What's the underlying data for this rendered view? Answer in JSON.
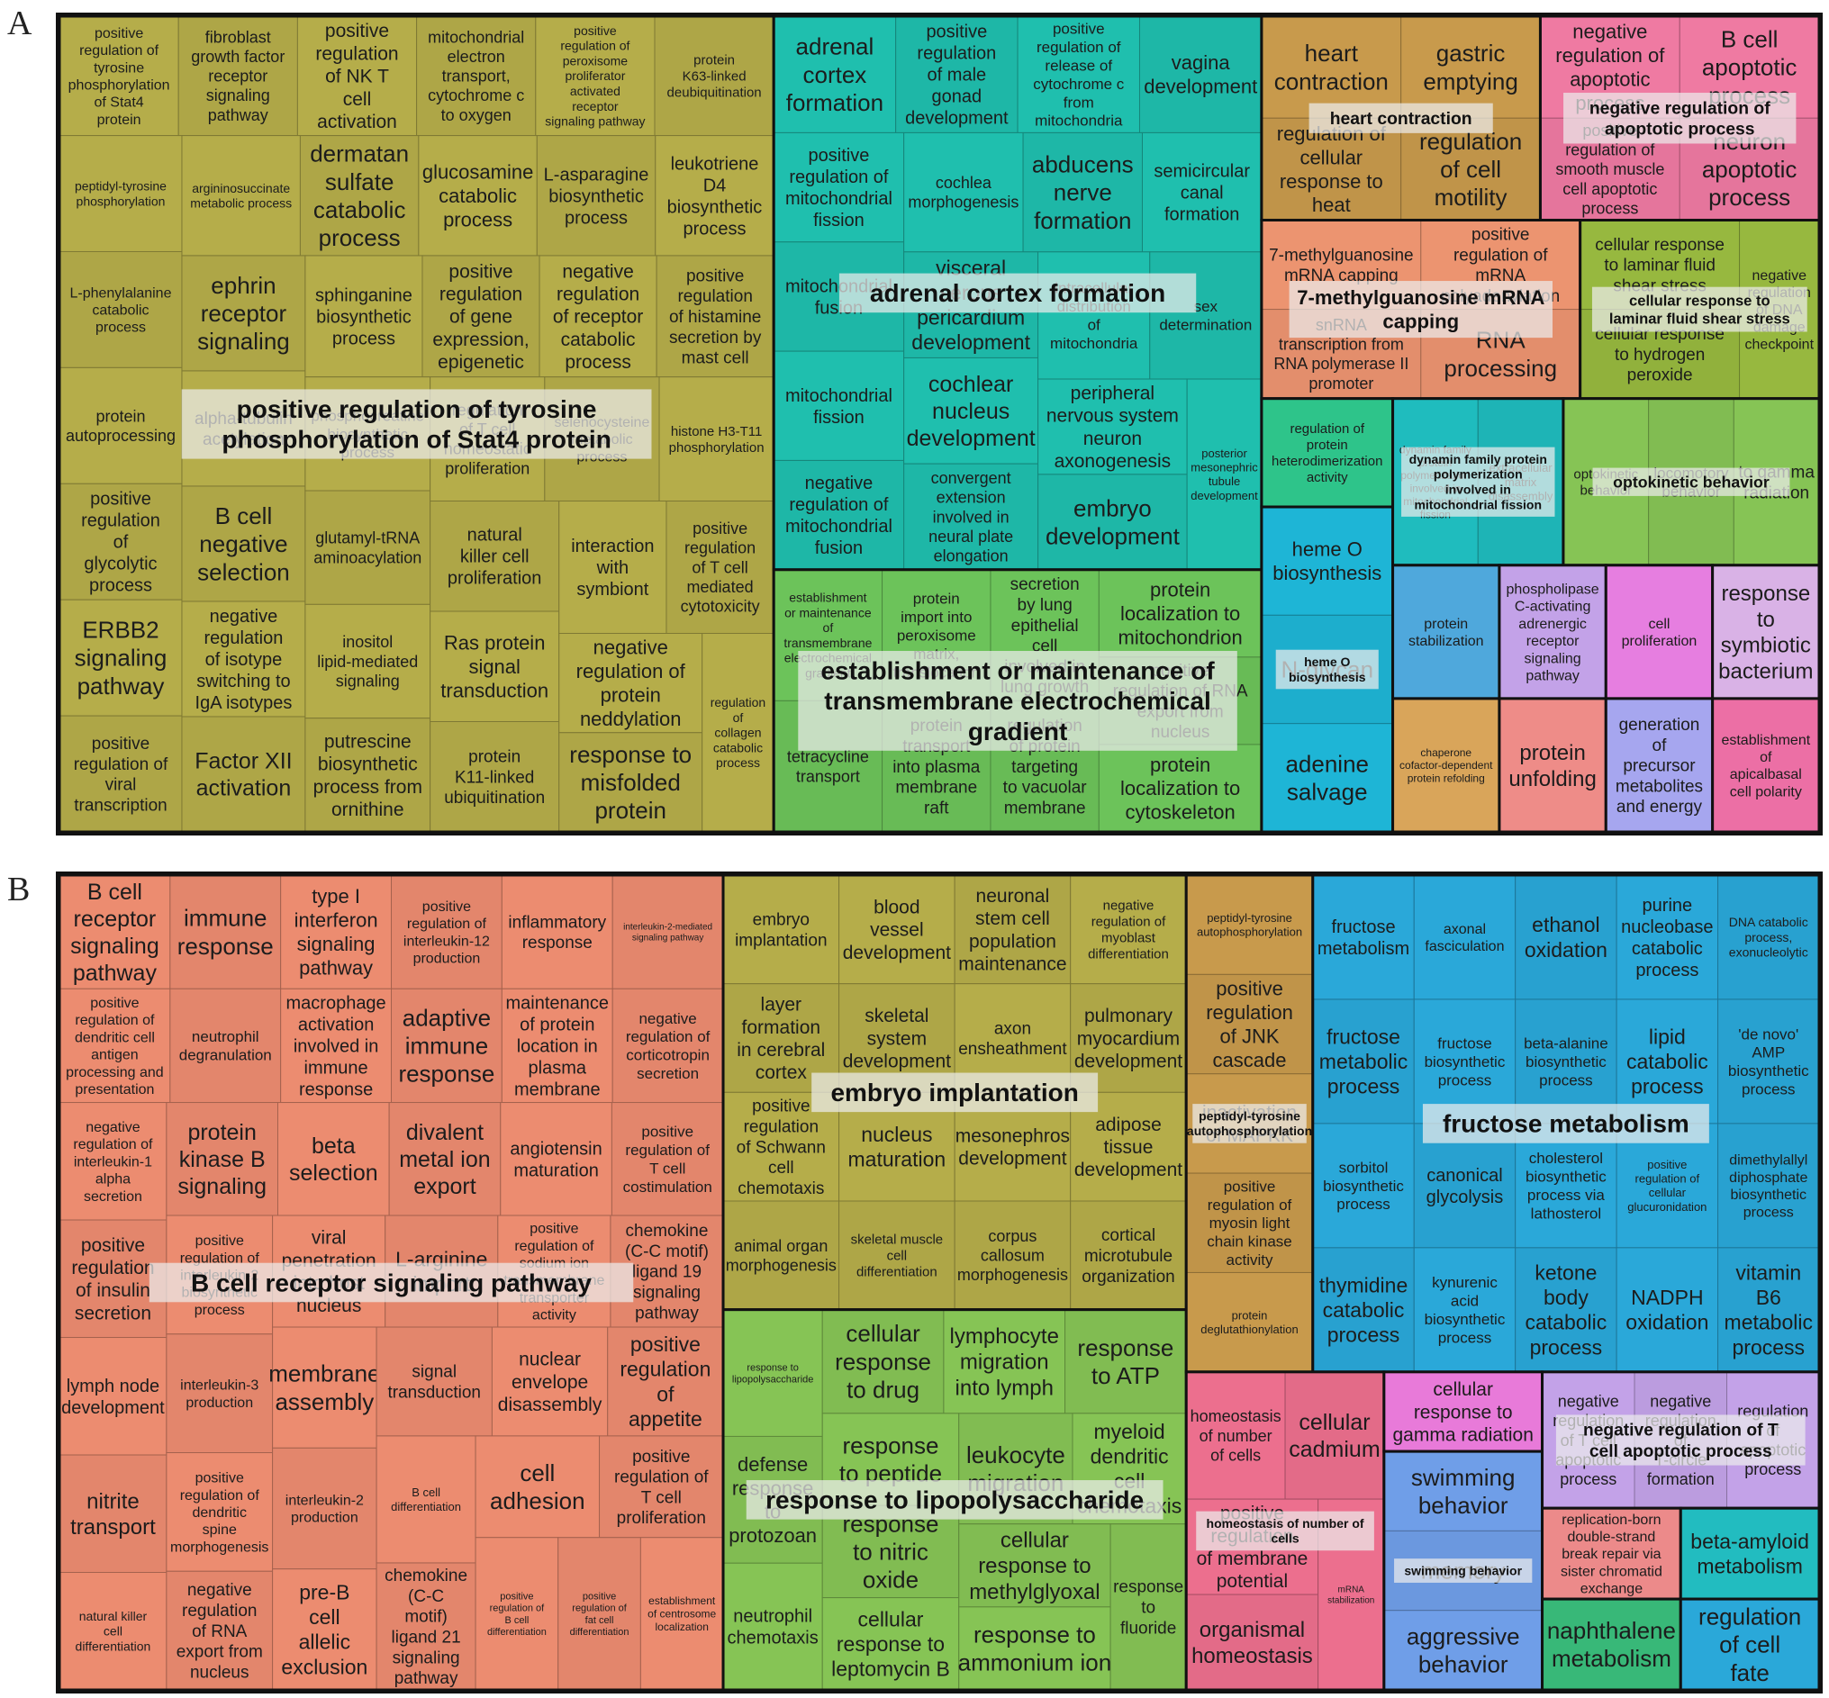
{
  "figure": {
    "panel_letters": [
      "A",
      "B"
    ]
  },
  "chart_data": [
    {
      "type": "treemap",
      "panel": "A",
      "groups": [
        {
          "name": "positive regulation of tyrosine phosphorylation of Stat4 protein",
          "color": "#b5ad4a",
          "items": [
            "positive regulation of tyrosine phosphorylation of Stat4 protein",
            "fibroblast growth factor receptor signaling pathway",
            "positive regulation of NK T cell activation",
            "mitochondrial electron transport, cytochrome c to oxygen",
            "positive regulation of peroxisome proliferator activated receptor signaling pathway",
            "protein K63-linked deubiquitination",
            "peptidyl-tyrosine phosphorylation",
            "L-phenylalanine catabolic process",
            "protein autoprocessing",
            "positive regulation of glycolytic process",
            "ERBB2 signaling pathway",
            "positive regulation of viral transcription",
            "argininosuccinate metabolic process",
            "dermatan sulfate catabolic process",
            "glucosamine catabolic process",
            "L-asparagine biosynthetic process",
            "leukotriene D4 biosynthetic process",
            "ephrin receptor signaling",
            "alpha-tubulin acetylation",
            "B cell negative selection",
            "negative regulation of isotype switching to IgA isotypes",
            "Factor XII activation",
            "sphinganine biosynthetic process",
            "positive regulation of gene expression, epigenetic",
            "negative regulation of receptor catabolic process",
            "positive regulation of histamine secretion by mast cell",
            "phosphocreatine biosynthetic process",
            "glutamyl-tRNA aminoacylation",
            "inositol lipid-mediated signaling",
            "putrescine biosynthetic process from ornithine",
            "regulation of T cell homeostatic proliferation",
            "selenocysteine metabolic process",
            "histone H3-T11 phosphorylation",
            "natural killer cell proliferation",
            "Ras protein signal transduction",
            "protein K11-linked ubiquitination",
            "interaction with symbiont",
            "positive regulation of T cell mediated cytotoxicity",
            "negative regulation of protein neddylation",
            "response to misfolded protein",
            "regulation of collagen catabolic process"
          ]
        },
        {
          "name": "adrenal cortex formation",
          "color": "#1fbfae",
          "items": [
            "adrenal cortex formation",
            "positive regulation of male gonad development",
            "positive regulation of release of cytochrome c from mitochondria",
            "vagina development",
            "positive regulation of mitochondrial fission",
            "mitochondrial fusion",
            "mitochondrial fission",
            "negative regulation of mitochondrial fusion",
            "cochlea morphogenesis",
            "abducens nerve formation",
            "semicircular canal formation",
            "visceral serous pericardium development",
            "cochlear nucleus development",
            "convergent extension involved in neural plate elongation",
            "intracellular distribution of mitochondria",
            "sex determination",
            "peripheral nervous system neuron axonogenesis",
            "embryo development",
            "posterior mesonephric tubule development"
          ]
        },
        {
          "name": "establishment or maintenance of transmembrane electrochemical gradient",
          "color": "#6cc35a",
          "items": [
            "establishment or maintenance of transmembrane electrochemical gradient",
            "tetracycline transport",
            "protein import into peroxisome matrix, translocation",
            "protein transport into plasma membrane raft",
            "secretion by lung epithelial cell involved in lung growth",
            "regulation of protein targeting to vacuolar membrane",
            "protein localization to mitochondrion",
            "positive regulation of RNA export from nucleus",
            "protein localization to cytoskeleton"
          ]
        },
        {
          "name": "heart contraction",
          "color": "#c89a4c",
          "items": [
            "heart contraction",
            "regulation of cellular response to heat",
            "gastric emptying",
            "regulation of cell motility"
          ]
        },
        {
          "name": "negative regulation of apoptotic process",
          "color": "#ef7aa2",
          "items": [
            "negative regulation of apoptotic process",
            "positive regulation of smooth muscle cell apoptotic process",
            "B cell apoptotic process",
            "neuron apoptotic process"
          ]
        },
        {
          "name": "7-methylguanosine mRNA capping",
          "color": "#ec9470",
          "items": [
            "7-methylguanosine mRNA capping",
            "snRNA transcription from RNA polymerase II promoter",
            "positive regulation of mRNA polyadenylation",
            "RNA processing"
          ]
        },
        {
          "name": "cellular response to laminar fluid shear stress",
          "color": "#97b83f",
          "items": [
            "cellular response to laminar fluid shear stress",
            "cellular response to hydrogen peroxide",
            "negative regulation of DNA damage checkpoint"
          ]
        },
        {
          "name": "regulation of protein heterodimerization activity",
          "color": "#2ec48a",
          "items": [
            "regulation of protein heterodimerization activity"
          ]
        },
        {
          "name": "heme O biosynthesis",
          "color": "#1eb5d6",
          "items": [
            "heme O biosynthesis",
            "N-glycan",
            "adenine salvage"
          ]
        },
        {
          "name": "dynamin family protein polymerization involved in mitochondrial fission",
          "color": "#1fbcbe",
          "items": [
            "dynamin family protein polymerization involved in mitochondrial fission",
            "extracellular matrix disassembly"
          ]
        },
        {
          "name": "optokinetic behavior",
          "color": "#86c455",
          "items": [
            "optokinetic behavior",
            "locomotory behavior",
            "to gamma radiation"
          ]
        },
        {
          "name": "protein stabilization",
          "color": "#4fa8dc",
          "items": [
            "protein stabilization"
          ]
        },
        {
          "name": "chaperone cofactor-dependent protein refolding",
          "color": "#d9a55a",
          "items": [
            "chaperone cofactor-dependent protein refolding"
          ]
        },
        {
          "name": "phospholipase C-activating adrenergic receptor signaling pathway",
          "color": "#c3a2e8",
          "items": [
            "phospholipase C-activating adrenergic receptor signaling pathway"
          ]
        },
        {
          "name": "protein unfolding",
          "color": "#ee8c88",
          "items": [
            "protein unfolding"
          ]
        },
        {
          "name": "cell proliferation",
          "color": "#e67ee0",
          "items": [
            "cell proliferation"
          ]
        },
        {
          "name": "response to symbiotic bacterium",
          "color": "#d9b2e6",
          "items": [
            "response to symbiotic bacterium"
          ]
        },
        {
          "name": "generation of precursor metabolites and energy",
          "color": "#a6a6ef",
          "items": [
            "generation of precursor metabolites and energy"
          ]
        },
        {
          "name": "establishment of apicalbasal cell polarity",
          "color": "#ec6fa5",
          "items": [
            "establishment of apicalbasal cell polarity"
          ]
        }
      ]
    },
    {
      "type": "treemap",
      "panel": "B",
      "groups": [
        {
          "name": "B cell receptor signaling pathway",
          "color": "#ec8c70",
          "items": [
            "B cell receptor signaling pathway",
            "immune response",
            "type I interferon signaling pathway",
            "positive regulation of interleukin-12 production",
            "inflammatory response",
            "interleukin-2-mediated signaling pathway",
            "positive regulation of dendritic cell antigen processing and presentation",
            "neutrophil degranulation",
            "macrophage activation involved in immune response",
            "adaptive immune response",
            "maintenance of protein location in plasma membrane",
            "negative regulation of corticotropin secretion",
            "negative regulation of interleukin-1 alpha secretion",
            "positive regulation of insulin secretion",
            "lymph node development",
            "nitrite transport",
            "natural killer cell differentiation",
            "protein kinase B signaling",
            "beta selection",
            "divalent metal ion export",
            "angiotensin maturation",
            "positive regulation of T cell costimulation",
            "positive regulation of interleukin-2 biosynthetic process",
            "interleukin-3 production",
            "positive regulation of dendritic spine morphogenesis",
            "negative regulation of RNA export from nucleus",
            "viral penetration into host nucleus",
            "L-arginine import",
            "positive regulation of sodium ion transmembrane transporter activity",
            "chemokine (C-C motif) ligand 19 signaling pathway",
            "membrane assembly",
            "interleukin-2 production",
            "pre-B cell allelic exclusion",
            "signal transduction",
            "nuclear envelope disassembly",
            "positive regulation of appetite",
            "B cell differentiation",
            "chemokine (C-C motif) ligand 21 signaling pathway",
            "cell adhesion",
            "positive regulation of T cell proliferation",
            "positive regulation of B cell differentiation",
            "positive regulation of fat cell differentiation",
            "establishment of centrosome localization"
          ]
        },
        {
          "name": "embryo implantation",
          "color": "#b5ad4a",
          "items": [
            "embryo implantation",
            "layer formation in cerebral cortex",
            "positive regulation of Schwann cell chemotaxis",
            "animal organ morphogenesis",
            "blood vessel development",
            "neuronal stem cell population maintenance",
            "negative regulation of myoblast differentiation",
            "skeletal system development",
            "nucleus maturation",
            "skeletal muscle cell differentiation",
            "axon ensheathment",
            "pulmonary myocardium development",
            "mesonephros development",
            "corpus callosum morphogenesis",
            "adipose tissue development",
            "cortical microtubule organization"
          ]
        },
        {
          "name": "response to lipopolysaccharide",
          "color": "#86c455",
          "items": [
            "response to lipopolysaccharide",
            "defense response to protozoan",
            "neutrophil chemotaxis",
            "cellular response to drug",
            "lymphocyte migration into lymph",
            "response to ATP",
            "response to peptide",
            "response to nitric oxide",
            "cellular response to leptomycin B",
            "leukocyte migration",
            "myeloid dendritic cell chemotaxis",
            "cellular response to methylglyoxal",
            "response to ammonium ion",
            "response to fluoride"
          ]
        },
        {
          "name": "peptidyl-tyrosine autophosphorylation",
          "color": "#c89a4c",
          "items": [
            "peptidyl-tyrosine autophosphorylation",
            "positive regulation of JNK cascade",
            "inactivation of MAPKK",
            "positive regulation of myosin light chain kinase activity",
            "protein deglutathionylation"
          ]
        },
        {
          "name": "fructose metabolism",
          "color": "#2aa8d9",
          "items": [
            "fructose metabolism",
            "fructose metabolic process",
            "sorbitol biosynthetic process",
            "thymidine catabolic process",
            "axonal fasciculation",
            "ethanol oxidation",
            "purine nucleobase catabolic process",
            "DNA catabolic process, exonucleolytic",
            "fructose biosynthetic process",
            "canonical glycolysis",
            "kynurenic acid biosynthetic process",
            "beta-alanine biosynthetic process",
            "lipid catabolic process",
            "'de novo' AMP biosynthetic process",
            "cholesterol biosynthetic process via lathosterol",
            "ketone body catabolic process",
            "positive regulation of cellular glucuronidation",
            "dimethylallyl diphosphate biosynthetic process",
            "NADPH oxidation",
            "vitamin B6 metabolic process"
          ]
        },
        {
          "name": "homeostasis of number of cells",
          "color": "#ec6f8e",
          "items": [
            "homeostasis of number of cells",
            "cellular cadmium",
            "positive regulation of membrane potential",
            "organismal homeostasis",
            "mRNA stabilization"
          ]
        },
        {
          "name": "cellular response to gamma radiation",
          "color": "#e87ad9",
          "items": [
            "cellular response to gamma radiation"
          ]
        },
        {
          "name": "swimming behavior",
          "color": "#6f9ee8",
          "items": [
            "swimming behavior",
            "memory",
            "aggressive behavior"
          ]
        },
        {
          "name": "negative regulation of T cell apoptotic process",
          "color": "#c3a2e8",
          "items": [
            "negative regulation of T cell apoptotic process",
            "negative regulation of T-circle formation",
            "regulation of apoptotic process"
          ]
        },
        {
          "name": "replication-born double-strand break repair via sister chromatid exchange",
          "color": "#ec8a8a",
          "items": [
            "replication-born double-strand break repair via sister chromatid exchange"
          ]
        },
        {
          "name": "naphthalene metabolism",
          "color": "#38b878",
          "items": [
            "naphthalene metabolism"
          ]
        },
        {
          "name": "beta-amyloid metabolism",
          "color": "#22bcc0",
          "items": [
            "beta-amyloid metabolism"
          ]
        },
        {
          "name": "regulation of cell fate",
          "color": "#2aa8d9",
          "items": [
            "regulation of cell fate"
          ]
        }
      ]
    }
  ]
}
